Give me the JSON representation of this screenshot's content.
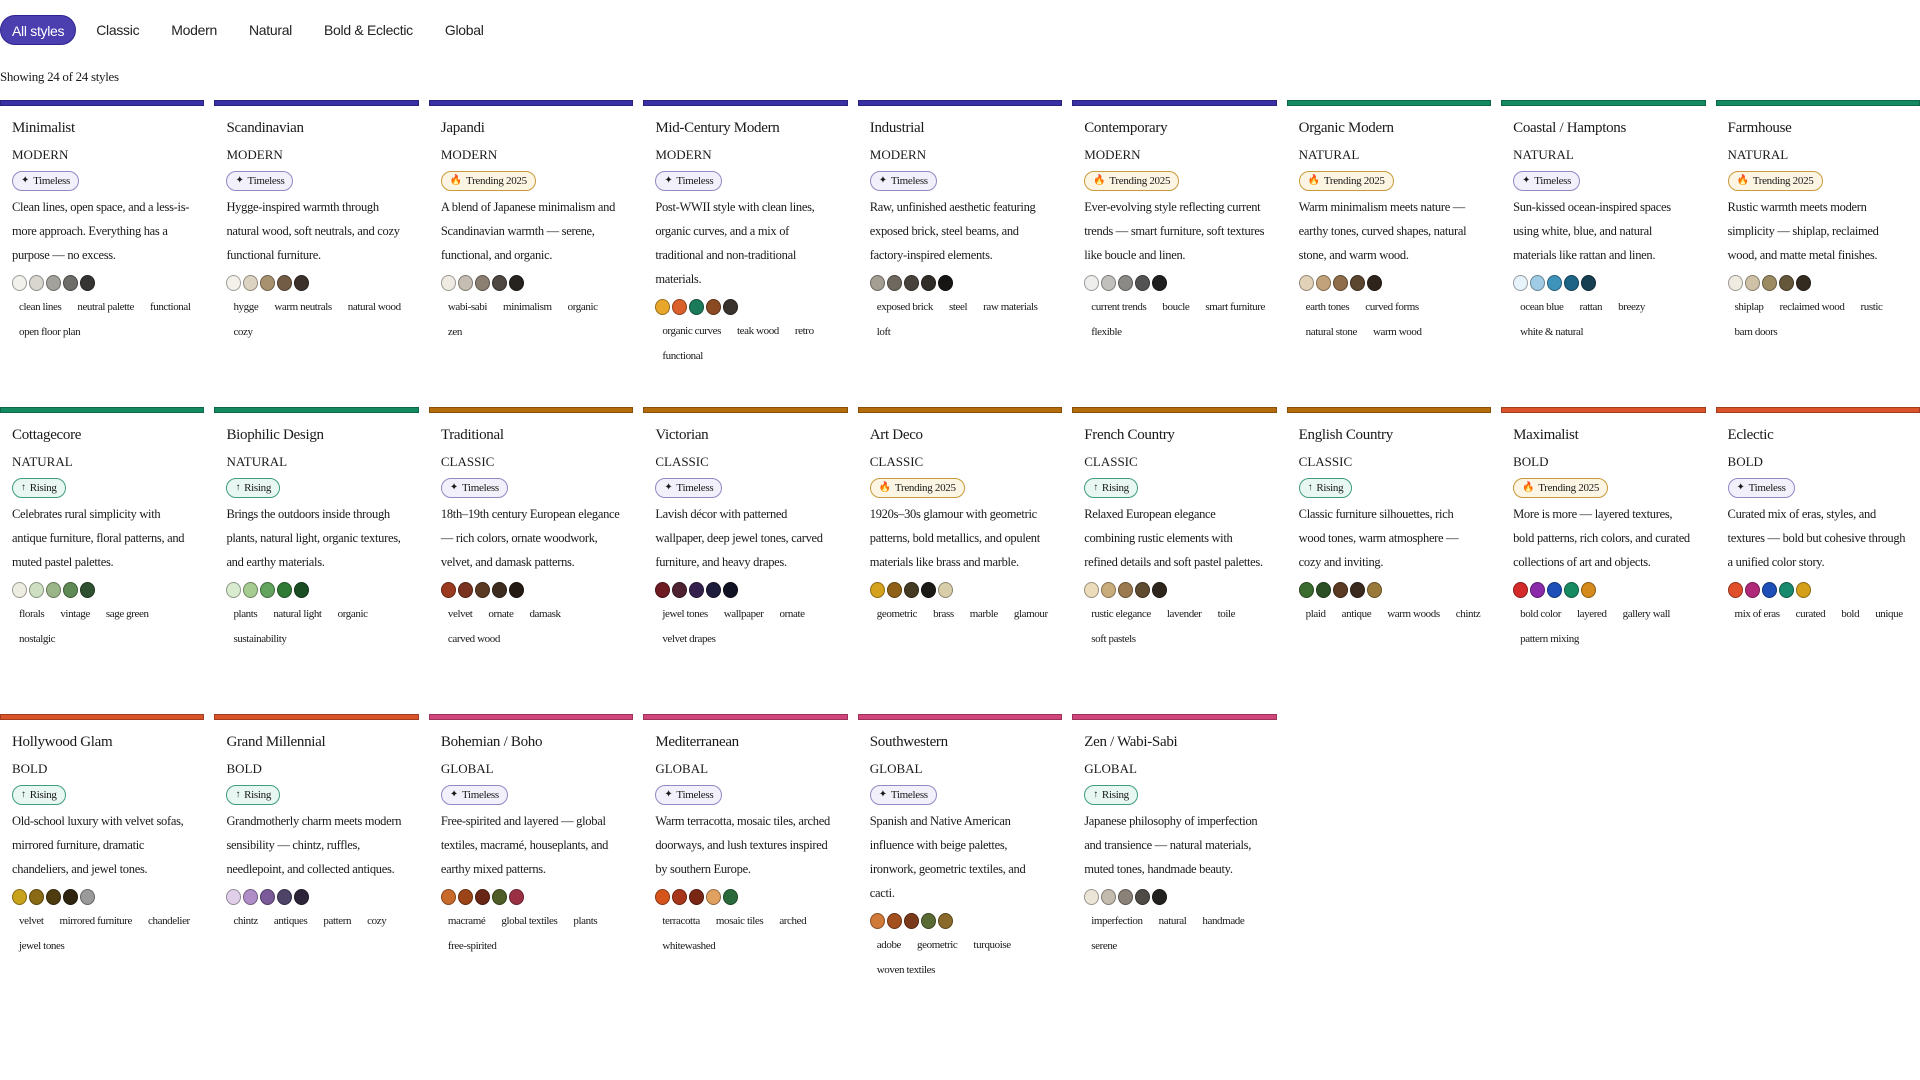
{
  "tabs": [
    "All styles",
    "Classic",
    "Modern",
    "Natural",
    "Bold & Eclectic",
    "Global"
  ],
  "active_tab": "All styles",
  "count_text": "Showing 24 of 24 styles",
  "category_colors": {
    "MODERN": "#3a30a6",
    "NATURAL": "#138a60",
    "CLASSIC": "#b36b0c",
    "BOLD": "#d9532a",
    "GLOBAL": "#d0457a"
  },
  "badges": {
    "timeless": {
      "icon": "sparkle-icon",
      "glyph": "✦",
      "label": "Timeless"
    },
    "trending": {
      "icon": "flame-icon",
      "glyph": "🔥",
      "label": "Trending 2025"
    },
    "rising": {
      "icon": "arrow-up-icon",
      "glyph": "↑",
      "label": "Rising"
    }
  },
  "styles": [
    {
      "name": "Minimalist",
      "category": "MODERN",
      "badge": "timeless",
      "description": "Clean lines, open space, and a less-is-more approach. Everything has a purpose — no excess.",
      "palette": [
        "#f2f1ec",
        "#d8d6cf",
        "#a3a19b",
        "#6e6d69",
        "#353432"
      ],
      "tags": [
        "clean lines",
        "neutral palette",
        "functional",
        "open floor plan"
      ]
    },
    {
      "name": "Scandinavian",
      "category": "MODERN",
      "badge": "timeless",
      "description": "Hygge-inspired warmth through natural wood, soft neutrals, and cozy functional furniture.",
      "palette": [
        "#f4f1ea",
        "#ddd3c3",
        "#a8916f",
        "#735c45",
        "#3b302a"
      ],
      "tags": [
        "hygge",
        "warm neutrals",
        "natural wood",
        "cozy"
      ]
    },
    {
      "name": "Japandi",
      "category": "MODERN",
      "badge": "trending",
      "description": "A blend of Japanese minimalism and Scandinavian warmth — serene, functional, and organic.",
      "palette": [
        "#efebe3",
        "#c5bdb1",
        "#8b7f71",
        "#4f4842",
        "#26231f"
      ],
      "tags": [
        "wabi-sabi",
        "minimalism",
        "organic",
        "zen"
      ]
    },
    {
      "name": "Mid-Century Modern",
      "category": "MODERN",
      "badge": "timeless",
      "description": "Post-WWII style with clean lines, organic curves, and a mix of traditional and non-traditional materials.",
      "palette": [
        "#e8a72a",
        "#d9602a",
        "#1b7a5a",
        "#8b4a22",
        "#3a322c"
      ],
      "tags": [
        "organic curves",
        "teak wood",
        "retro",
        "functional"
      ]
    },
    {
      "name": "Industrial",
      "category": "MODERN",
      "badge": "timeless",
      "description": "Raw, unfinished aesthetic featuring exposed brick, steel beams, and factory-inspired elements.",
      "palette": [
        "#a39d92",
        "#6f685f",
        "#48423c",
        "#302c28",
        "#161514"
      ],
      "tags": [
        "exposed brick",
        "steel",
        "raw materials",
        "loft"
      ]
    },
    {
      "name": "Contemporary",
      "category": "MODERN",
      "badge": "trending",
      "description": "Ever-evolving style reflecting current trends — smart furniture, soft textures like boucle and linen.",
      "palette": [
        "#eeeeec",
        "#c2c0bc",
        "#8a8986",
        "#535353",
        "#1f1f1f"
      ],
      "tags": [
        "current trends",
        "boucle",
        "smart furniture",
        "flexible"
      ]
    },
    {
      "name": "Organic Modern",
      "category": "NATURAL",
      "badge": "trending",
      "description": "Warm minimalism meets nature — earthy tones, curved shapes, natural stone, and warm wood.",
      "palette": [
        "#e2d2b8",
        "#c2a27a",
        "#8f6d4a",
        "#5b4630",
        "#2e241c"
      ],
      "tags": [
        "earth tones",
        "curved forms",
        "natural stone",
        "warm wood"
      ]
    },
    {
      "name": "Coastal / Hamptons",
      "category": "NATURAL",
      "badge": "timeless",
      "description": "Sun-kissed ocean-inspired spaces using white, blue, and natural materials like rattan and linen.",
      "palette": [
        "#e6f3fa",
        "#9fcbe4",
        "#3e93ba",
        "#1e6486",
        "#163f52"
      ],
      "tags": [
        "ocean blue",
        "rattan",
        "breezy",
        "white & natural"
      ]
    },
    {
      "name": "Farmhouse",
      "category": "NATURAL",
      "badge": "trending",
      "description": "Rustic warmth meets modern simplicity — shiplap, reclaimed wood, and matte metal finishes.",
      "palette": [
        "#f0ebe0",
        "#cfc1a6",
        "#9c8a62",
        "#65573a",
        "#332a20"
      ],
      "tags": [
        "shiplap",
        "reclaimed wood",
        "rustic",
        "barn doors"
      ]
    },
    {
      "name": "Cottagecore",
      "category": "NATURAL",
      "badge": "rising",
      "description": "Celebrates rural simplicity with antique furniture, floral patterns, and muted pastel palettes.",
      "palette": [
        "#eeede2",
        "#cfe0c2",
        "#9ab587",
        "#5f8a55",
        "#2f5131"
      ],
      "tags": [
        "florals",
        "vintage",
        "sage green",
        "nostalgic"
      ]
    },
    {
      "name": "Biophilic Design",
      "category": "NATURAL",
      "badge": "rising",
      "description": "Brings the outdoors inside through plants, natural light, organic textures, and earthy materials.",
      "palette": [
        "#d9ebcf",
        "#a6cc92",
        "#62a35e",
        "#2f7a35",
        "#1b4d22"
      ],
      "tags": [
        "plants",
        "natural light",
        "organic",
        "sustainability"
      ]
    },
    {
      "name": "Traditional",
      "category": "CLASSIC",
      "badge": "timeless",
      "description": "18th–19th century European elegance — rich colors, ornate woodwork, velvet, and damask patterns.",
      "palette": [
        "#9a3a1f",
        "#7a3320",
        "#5a3a22",
        "#3e2d1f",
        "#241a14"
      ],
      "tags": [
        "velvet",
        "ornate",
        "damask",
        "carved wood"
      ]
    },
    {
      "name": "Victorian",
      "category": "CLASSIC",
      "badge": "timeless",
      "description": "Lavish décor with patterned wallpaper, deep jewel tones, carved furniture, and heavy drapes.",
      "palette": [
        "#6e1b22",
        "#4e2230",
        "#33204d",
        "#1e1c3c",
        "#121225"
      ],
      "tags": [
        "jewel tones",
        "wallpaper",
        "ornate",
        "velvet drapes"
      ]
    },
    {
      "name": "Art Deco",
      "category": "CLASSIC",
      "badge": "trending",
      "description": "1920s–30s glamour with geometric patterns, bold metallics, and opulent materials like brass and marble.",
      "palette": [
        "#d4a21d",
        "#8f6118",
        "#453a22",
        "#1c1a17",
        "#d8ceaa"
      ],
      "tags": [
        "geometric",
        "brass",
        "marble",
        "glamour"
      ]
    },
    {
      "name": "French Country",
      "category": "CLASSIC",
      "badge": "rising",
      "description": "Relaxed European elegance combining rustic elements with refined details and soft pastel palettes.",
      "palette": [
        "#ecdcbc",
        "#c9ac7c",
        "#9a7a4e",
        "#5f4b30",
        "#2e261c"
      ],
      "tags": [
        "rustic elegance",
        "lavender",
        "toile",
        "soft pastels"
      ]
    },
    {
      "name": "English Country",
      "category": "CLASSIC",
      "badge": "rising",
      "description": "Classic furniture silhouettes, rich wood tones, warm atmosphere — cozy and inviting.",
      "palette": [
        "#3c6b2f",
        "#2c4f26",
        "#5a3a22",
        "#3a2a1e",
        "#9a7a3a"
      ],
      "tags": [
        "plaid",
        "antique",
        "warm woods",
        "chintz"
      ]
    },
    {
      "name": "Maximalist",
      "category": "BOLD",
      "badge": "trending",
      "description": "More is more — layered textures, bold patterns, rich colors, and curated collections of art and objects.",
      "palette": [
        "#d42a2a",
        "#8a2aa8",
        "#1e4fb8",
        "#188a62",
        "#d48a1c"
      ],
      "tags": [
        "bold color",
        "layered",
        "gallery wall",
        "pattern mixing"
      ]
    },
    {
      "name": "Eclectic",
      "category": "BOLD",
      "badge": "timeless",
      "description": "Curated mix of eras, styles, and textures — bold but cohesive through a unified color story.",
      "palette": [
        "#e0502a",
        "#b02a7a",
        "#1e4fb8",
        "#188a6e",
        "#d4a01c"
      ],
      "tags": [
        "mix of eras",
        "curated",
        "bold",
        "unique"
      ]
    },
    {
      "name": "Hollywood Glam",
      "category": "BOLD",
      "badge": "rising",
      "description": "Old-school luxury with velvet sofas, mirrored furniture, dramatic chandeliers, and jewel tones.",
      "palette": [
        "#c9a21c",
        "#8a6a14",
        "#4e3c10",
        "#2e2410",
        "#9a9a9a"
      ],
      "tags": [
        "velvet",
        "mirrored furniture",
        "chandelier",
        "jewel tones"
      ]
    },
    {
      "name": "Grand Millennial",
      "category": "BOLD",
      "badge": "rising",
      "description": "Grandmotherly charm meets modern sensibility — chintz, ruffles, needlepoint, and collected antiques.",
      "palette": [
        "#e0cfe8",
        "#b08ec8",
        "#7a5a98",
        "#4e4468",
        "#2c2438"
      ],
      "tags": [
        "chintz",
        "antiques",
        "pattern",
        "cozy"
      ]
    },
    {
      "name": "Bohemian / Boho",
      "category": "GLOBAL",
      "badge": "timeless",
      "description": "Free-spirited and layered — global textiles, macramé, houseplants, and earthy mixed patterns.",
      "palette": [
        "#c86a2a",
        "#9a4418",
        "#6a2614",
        "#4e5e26",
        "#9a3044"
      ],
      "tags": [
        "macramé",
        "global textiles",
        "plants",
        "free-spirited"
      ]
    },
    {
      "name": "Mediterranean",
      "category": "GLOBAL",
      "badge": "timeless",
      "description": "Warm terracotta, mosaic tiles, arched doorways, and lush textures inspired by southern Europe.",
      "palette": [
        "#d4541c",
        "#a8361a",
        "#7a2614",
        "#e0a060",
        "#2a6a3a"
      ],
      "tags": [
        "terracotta",
        "mosaic tiles",
        "arched",
        "whitewashed"
      ]
    },
    {
      "name": "Southwestern",
      "category": "GLOBAL",
      "badge": "timeless",
      "description": "Spanish and Native American influence with beige palettes, ironwork, geometric textiles, and cacti.",
      "palette": [
        "#d07a3a",
        "#a4501e",
        "#7a3a1a",
        "#5a6a34",
        "#8a6a2a"
      ],
      "tags": [
        "adobe",
        "geometric",
        "turquoise",
        "woven textiles"
      ]
    },
    {
      "name": "Zen / Wabi-Sabi",
      "category": "GLOBAL",
      "badge": "rising",
      "description": "Japanese philosophy of imperfection and transience — natural materials, muted tones, handmade beauty.",
      "palette": [
        "#ebe5d8",
        "#c2bbae",
        "#8a8278",
        "#4e4a46",
        "#222120"
      ],
      "tags": [
        "imperfection",
        "natural",
        "handmade",
        "serene"
      ]
    }
  ]
}
